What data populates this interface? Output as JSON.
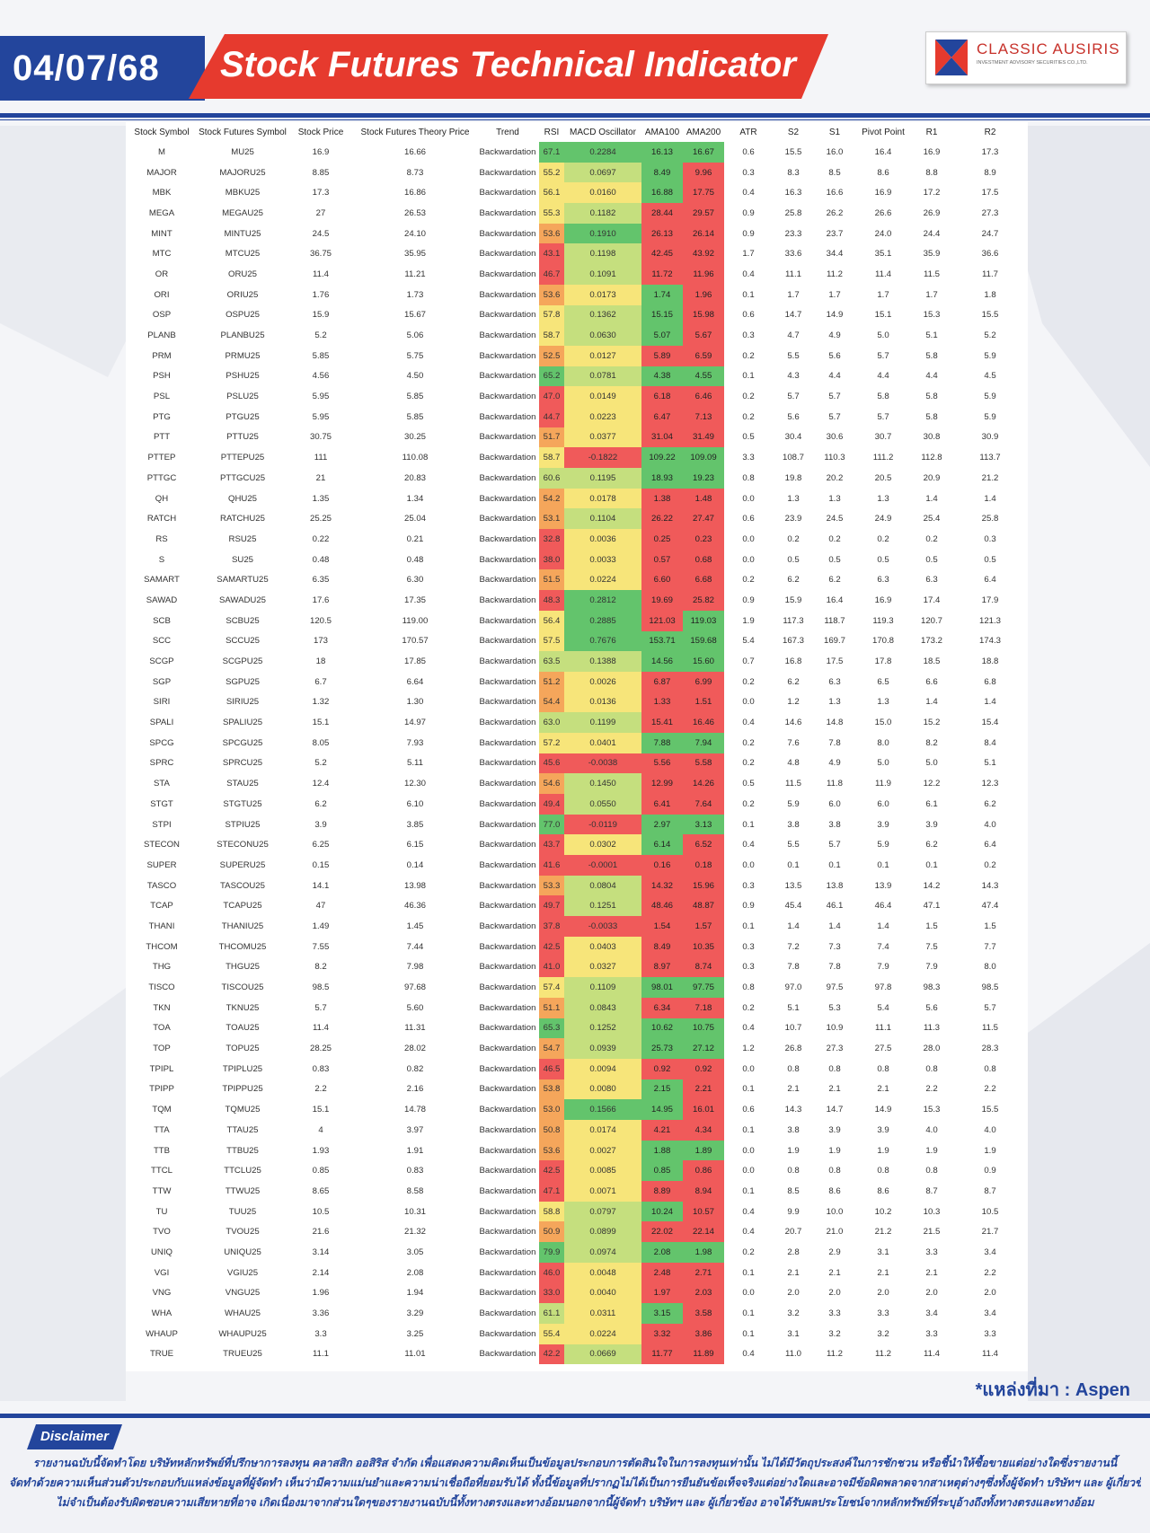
{
  "header": {
    "date": "04/07/68",
    "title": "Stock Futures Technical Indicator",
    "logo_name": "CLASSIC AUSIRIS",
    "logo_sub": "INVESTMENT ADVISORY SECURITIES CO.,LTD."
  },
  "colors": {
    "brand_blue": "#23459c",
    "brand_red": "#e63a2e",
    "cell_red": "#f05a5a",
    "cell_orange": "#f5a65b",
    "cell_yellow": "#f7e57a",
    "cell_lightgreen": "#c5df7e",
    "cell_green": "#63c46c"
  },
  "table": {
    "columns": [
      "Stock Symbol",
      "Stock Futures Symbol",
      "Stock Price",
      "Stock Futures Theory Price",
      "Trend",
      "RSI",
      "MACD Oscillator",
      "AMA100",
      "AMA200",
      "ATR",
      "S2",
      "S1",
      "Pivot Point",
      "R1",
      "R2"
    ],
    "rows": [
      [
        "M",
        "MU25",
        "16.9",
        "16.66",
        "Backwardation",
        "67.1",
        "0.2284",
        "16.13",
        "16.67",
        "0.6",
        "15.5",
        "16.0",
        "16.4",
        "16.9",
        "17.3"
      ],
      [
        "MAJOR",
        "MAJORU25",
        "8.85",
        "8.73",
        "Backwardation",
        "55.2",
        "0.0697",
        "8.49",
        "9.96",
        "0.3",
        "8.3",
        "8.5",
        "8.6",
        "8.8",
        "8.9"
      ],
      [
        "MBK",
        "MBKU25",
        "17.3",
        "16.86",
        "Backwardation",
        "56.1",
        "0.0160",
        "16.88",
        "17.75",
        "0.4",
        "16.3",
        "16.6",
        "16.9",
        "17.2",
        "17.5"
      ],
      [
        "MEGA",
        "MEGAU25",
        "27",
        "26.53",
        "Backwardation",
        "55.3",
        "0.1182",
        "28.44",
        "29.57",
        "0.9",
        "25.8",
        "26.2",
        "26.6",
        "26.9",
        "27.3"
      ],
      [
        "MINT",
        "MINTU25",
        "24.5",
        "24.10",
        "Backwardation",
        "53.6",
        "0.1910",
        "26.13",
        "26.14",
        "0.9",
        "23.3",
        "23.7",
        "24.0",
        "24.4",
        "24.7"
      ],
      [
        "MTC",
        "MTCU25",
        "36.75",
        "35.95",
        "Backwardation",
        "43.1",
        "0.1198",
        "42.45",
        "43.92",
        "1.7",
        "33.6",
        "34.4",
        "35.1",
        "35.9",
        "36.6"
      ],
      [
        "OR",
        "ORU25",
        "11.4",
        "11.21",
        "Backwardation",
        "46.7",
        "0.1091",
        "11.72",
        "11.96",
        "0.4",
        "11.1",
        "11.2",
        "11.4",
        "11.5",
        "11.7"
      ],
      [
        "ORI",
        "ORIU25",
        "1.76",
        "1.73",
        "Backwardation",
        "53.6",
        "0.0173",
        "1.74",
        "1.96",
        "0.1",
        "1.7",
        "1.7",
        "1.7",
        "1.7",
        "1.8"
      ],
      [
        "OSP",
        "OSPU25",
        "15.9",
        "15.67",
        "Backwardation",
        "57.8",
        "0.1362",
        "15.15",
        "15.98",
        "0.6",
        "14.7",
        "14.9",
        "15.1",
        "15.3",
        "15.5"
      ],
      [
        "PLANB",
        "PLANBU25",
        "5.2",
        "5.06",
        "Backwardation",
        "58.7",
        "0.0630",
        "5.07",
        "5.67",
        "0.3",
        "4.7",
        "4.9",
        "5.0",
        "5.1",
        "5.2"
      ],
      [
        "PRM",
        "PRMU25",
        "5.85",
        "5.75",
        "Backwardation",
        "52.5",
        "0.0127",
        "5.89",
        "6.59",
        "0.2",
        "5.5",
        "5.6",
        "5.7",
        "5.8",
        "5.9"
      ],
      [
        "PSH",
        "PSHU25",
        "4.56",
        "4.50",
        "Backwardation",
        "65.2",
        "0.0781",
        "4.38",
        "4.55",
        "0.1",
        "4.3",
        "4.4",
        "4.4",
        "4.4",
        "4.5"
      ],
      [
        "PSL",
        "PSLU25",
        "5.95",
        "5.85",
        "Backwardation",
        "47.0",
        "0.0149",
        "6.18",
        "6.46",
        "0.2",
        "5.7",
        "5.7",
        "5.8",
        "5.8",
        "5.9"
      ],
      [
        "PTG",
        "PTGU25",
        "5.95",
        "5.85",
        "Backwardation",
        "44.7",
        "0.0223",
        "6.47",
        "7.13",
        "0.2",
        "5.6",
        "5.7",
        "5.7",
        "5.8",
        "5.9"
      ],
      [
        "PTT",
        "PTTU25",
        "30.75",
        "30.25",
        "Backwardation",
        "51.7",
        "0.0377",
        "31.04",
        "31.49",
        "0.5",
        "30.4",
        "30.6",
        "30.7",
        "30.8",
        "30.9"
      ],
      [
        "PTTEP",
        "PTTEPU25",
        "111",
        "110.08",
        "Backwardation",
        "58.7",
        "-0.1822",
        "109.22",
        "109.09",
        "3.3",
        "108.7",
        "110.3",
        "111.2",
        "112.8",
        "113.7"
      ],
      [
        "PTTGC",
        "PTTGCU25",
        "21",
        "20.83",
        "Backwardation",
        "60.6",
        "0.1195",
        "18.93",
        "19.23",
        "0.8",
        "19.8",
        "20.2",
        "20.5",
        "20.9",
        "21.2"
      ],
      [
        "QH",
        "QHU25",
        "1.35",
        "1.34",
        "Backwardation",
        "54.2",
        "0.0178",
        "1.38",
        "1.48",
        "0.0",
        "1.3",
        "1.3",
        "1.3",
        "1.4",
        "1.4"
      ],
      [
        "RATCH",
        "RATCHU25",
        "25.25",
        "25.04",
        "Backwardation",
        "53.1",
        "0.1104",
        "26.22",
        "27.47",
        "0.6",
        "23.9",
        "24.5",
        "24.9",
        "25.4",
        "25.8"
      ],
      [
        "RS",
        "RSU25",
        "0.22",
        "0.21",
        "Backwardation",
        "32.8",
        "0.0036",
        "0.25",
        "0.23",
        "0.0",
        "0.2",
        "0.2",
        "0.2",
        "0.2",
        "0.3"
      ],
      [
        "S",
        "SU25",
        "0.48",
        "0.48",
        "Backwardation",
        "38.0",
        "0.0033",
        "0.57",
        "0.68",
        "0.0",
        "0.5",
        "0.5",
        "0.5",
        "0.5",
        "0.5"
      ],
      [
        "SAMART",
        "SAMARTU25",
        "6.35",
        "6.30",
        "Backwardation",
        "51.5",
        "0.0224",
        "6.60",
        "6.68",
        "0.2",
        "6.2",
        "6.2",
        "6.3",
        "6.3",
        "6.4"
      ],
      [
        "SAWAD",
        "SAWADU25",
        "17.6",
        "17.35",
        "Backwardation",
        "48.3",
        "0.2812",
        "19.69",
        "25.82",
        "0.9",
        "15.9",
        "16.4",
        "16.9",
        "17.4",
        "17.9"
      ],
      [
        "SCB",
        "SCBU25",
        "120.5",
        "119.00",
        "Backwardation",
        "56.4",
        "0.2885",
        "121.03",
        "119.03",
        "1.9",
        "117.3",
        "118.7",
        "119.3",
        "120.7",
        "121.3"
      ],
      [
        "SCC",
        "SCCU25",
        "173",
        "170.57",
        "Backwardation",
        "57.5",
        "0.7676",
        "153.71",
        "159.68",
        "5.4",
        "167.3",
        "169.7",
        "170.8",
        "173.2",
        "174.3"
      ],
      [
        "SCGP",
        "SCGPU25",
        "18",
        "17.85",
        "Backwardation",
        "63.5",
        "0.1388",
        "14.56",
        "15.60",
        "0.7",
        "16.8",
        "17.5",
        "17.8",
        "18.5",
        "18.8"
      ],
      [
        "SGP",
        "SGPU25",
        "6.7",
        "6.64",
        "Backwardation",
        "51.2",
        "0.0026",
        "6.87",
        "6.99",
        "0.2",
        "6.2",
        "6.3",
        "6.5",
        "6.6",
        "6.8"
      ],
      [
        "SIRI",
        "SIRIU25",
        "1.32",
        "1.30",
        "Backwardation",
        "54.4",
        "0.0136",
        "1.33",
        "1.51",
        "0.0",
        "1.2",
        "1.3",
        "1.3",
        "1.4",
        "1.4"
      ],
      [
        "SPALI",
        "SPALIU25",
        "15.1",
        "14.97",
        "Backwardation",
        "63.0",
        "0.1199",
        "15.41",
        "16.46",
        "0.4",
        "14.6",
        "14.8",
        "15.0",
        "15.2",
        "15.4"
      ],
      [
        "SPCG",
        "SPCGU25",
        "8.05",
        "7.93",
        "Backwardation",
        "57.2",
        "0.0401",
        "7.88",
        "7.94",
        "0.2",
        "7.6",
        "7.8",
        "8.0",
        "8.2",
        "8.4"
      ],
      [
        "SPRC",
        "SPRCU25",
        "5.2",
        "5.11",
        "Backwardation",
        "45.6",
        "-0.0038",
        "5.56",
        "5.58",
        "0.2",
        "4.8",
        "4.9",
        "5.0",
        "5.0",
        "5.1"
      ],
      [
        "STA",
        "STAU25",
        "12.4",
        "12.30",
        "Backwardation",
        "54.6",
        "0.1450",
        "12.99",
        "14.26",
        "0.5",
        "11.5",
        "11.8",
        "11.9",
        "12.2",
        "12.3"
      ],
      [
        "STGT",
        "STGTU25",
        "6.2",
        "6.10",
        "Backwardation",
        "49.4",
        "0.0550",
        "6.41",
        "7.64",
        "0.2",
        "5.9",
        "6.0",
        "6.0",
        "6.1",
        "6.2"
      ],
      [
        "STPI",
        "STPIU25",
        "3.9",
        "3.85",
        "Backwardation",
        "77.0",
        "-0.0119",
        "2.97",
        "3.13",
        "0.1",
        "3.8",
        "3.8",
        "3.9",
        "3.9",
        "4.0"
      ],
      [
        "STECON",
        "STECONU25",
        "6.25",
        "6.15",
        "Backwardation",
        "43.7",
        "0.0302",
        "6.14",
        "6.52",
        "0.4",
        "5.5",
        "5.7",
        "5.9",
        "6.2",
        "6.4"
      ],
      [
        "SUPER",
        "SUPERU25",
        "0.15",
        "0.14",
        "Backwardation",
        "41.6",
        "-0.0001",
        "0.16",
        "0.18",
        "0.0",
        "0.1",
        "0.1",
        "0.1",
        "0.1",
        "0.2"
      ],
      [
        "TASCO",
        "TASCOU25",
        "14.1",
        "13.98",
        "Backwardation",
        "53.3",
        "0.0804",
        "14.32",
        "15.96",
        "0.3",
        "13.5",
        "13.8",
        "13.9",
        "14.2",
        "14.3"
      ],
      [
        "TCAP",
        "TCAPU25",
        "47",
        "46.36",
        "Backwardation",
        "49.7",
        "0.1251",
        "48.46",
        "48.87",
        "0.9",
        "45.4",
        "46.1",
        "46.4",
        "47.1",
        "47.4"
      ],
      [
        "THANI",
        "THANIU25",
        "1.49",
        "1.45",
        "Backwardation",
        "37.8",
        "-0.0033",
        "1.54",
        "1.57",
        "0.1",
        "1.4",
        "1.4",
        "1.4",
        "1.5",
        "1.5"
      ],
      [
        "THCOM",
        "THCOMU25",
        "7.55",
        "7.44",
        "Backwardation",
        "42.5",
        "0.0403",
        "8.49",
        "10.35",
        "0.3",
        "7.2",
        "7.3",
        "7.4",
        "7.5",
        "7.7"
      ],
      [
        "THG",
        "THGU25",
        "8.2",
        "7.98",
        "Backwardation",
        "41.0",
        "0.0327",
        "8.97",
        "8.74",
        "0.3",
        "7.8",
        "7.8",
        "7.9",
        "7.9",
        "8.0"
      ],
      [
        "TISCO",
        "TISCOU25",
        "98.5",
        "97.68",
        "Backwardation",
        "57.4",
        "0.1109",
        "98.01",
        "97.75",
        "0.8",
        "97.0",
        "97.5",
        "97.8",
        "98.3",
        "98.5"
      ],
      [
        "TKN",
        "TKNU25",
        "5.7",
        "5.60",
        "Backwardation",
        "51.1",
        "0.0843",
        "6.34",
        "7.18",
        "0.2",
        "5.1",
        "5.3",
        "5.4",
        "5.6",
        "5.7"
      ],
      [
        "TOA",
        "TOAU25",
        "11.4",
        "11.31",
        "Backwardation",
        "65.3",
        "0.1252",
        "10.62",
        "10.75",
        "0.4",
        "10.7",
        "10.9",
        "11.1",
        "11.3",
        "11.5"
      ],
      [
        "TOP",
        "TOPU25",
        "28.25",
        "28.02",
        "Backwardation",
        "54.7",
        "0.0939",
        "25.73",
        "27.12",
        "1.2",
        "26.8",
        "27.3",
        "27.5",
        "28.0",
        "28.3"
      ],
      [
        "TPIPL",
        "TPIPLU25",
        "0.83",
        "0.82",
        "Backwardation",
        "46.5",
        "0.0094",
        "0.92",
        "0.92",
        "0.0",
        "0.8",
        "0.8",
        "0.8",
        "0.8",
        "0.8"
      ],
      [
        "TPIPP",
        "TPIPPU25",
        "2.2",
        "2.16",
        "Backwardation",
        "53.8",
        "0.0080",
        "2.15",
        "2.21",
        "0.1",
        "2.1",
        "2.1",
        "2.1",
        "2.2",
        "2.2"
      ],
      [
        "TQM",
        "TQMU25",
        "15.1",
        "14.78",
        "Backwardation",
        "53.0",
        "0.1566",
        "14.95",
        "16.01",
        "0.6",
        "14.3",
        "14.7",
        "14.9",
        "15.3",
        "15.5"
      ],
      [
        "TTA",
        "TTAU25",
        "4",
        "3.97",
        "Backwardation",
        "50.8",
        "0.0174",
        "4.21",
        "4.34",
        "0.1",
        "3.8",
        "3.9",
        "3.9",
        "4.0",
        "4.0"
      ],
      [
        "TTB",
        "TTBU25",
        "1.93",
        "1.91",
        "Backwardation",
        "53.6",
        "0.0027",
        "1.88",
        "1.89",
        "0.0",
        "1.9",
        "1.9",
        "1.9",
        "1.9",
        "1.9"
      ],
      [
        "TTCL",
        "TTCLU25",
        "0.85",
        "0.83",
        "Backwardation",
        "42.5",
        "0.0085",
        "0.85",
        "0.86",
        "0.0",
        "0.8",
        "0.8",
        "0.8",
        "0.8",
        "0.9"
      ],
      [
        "TTW",
        "TTWU25",
        "8.65",
        "8.58",
        "Backwardation",
        "47.1",
        "0.0071",
        "8.89",
        "8.94",
        "0.1",
        "8.5",
        "8.6",
        "8.6",
        "8.7",
        "8.7"
      ],
      [
        "TU",
        "TUU25",
        "10.5",
        "10.31",
        "Backwardation",
        "58.8",
        "0.0797",
        "10.24",
        "10.57",
        "0.4",
        "9.9",
        "10.0",
        "10.2",
        "10.3",
        "10.5"
      ],
      [
        "TVO",
        "TVOU25",
        "21.6",
        "21.32",
        "Backwardation",
        "50.9",
        "0.0899",
        "22.02",
        "22.14",
        "0.4",
        "20.7",
        "21.0",
        "21.2",
        "21.5",
        "21.7"
      ],
      [
        "UNIQ",
        "UNIQU25",
        "3.14",
        "3.05",
        "Backwardation",
        "79.9",
        "0.0974",
        "2.08",
        "1.98",
        "0.2",
        "2.8",
        "2.9",
        "3.1",
        "3.3",
        "3.4"
      ],
      [
        "VGI",
        "VGIU25",
        "2.14",
        "2.08",
        "Backwardation",
        "46.0",
        "0.0048",
        "2.48",
        "2.71",
        "0.1",
        "2.1",
        "2.1",
        "2.1",
        "2.1",
        "2.2"
      ],
      [
        "VNG",
        "VNGU25",
        "1.96",
        "1.94",
        "Backwardation",
        "33.0",
        "0.0040",
        "1.97",
        "2.03",
        "0.0",
        "2.0",
        "2.0",
        "2.0",
        "2.0",
        "2.0"
      ],
      [
        "WHA",
        "WHAU25",
        "3.36",
        "3.29",
        "Backwardation",
        "61.1",
        "0.0311",
        "3.15",
        "3.58",
        "0.1",
        "3.2",
        "3.3",
        "3.3",
        "3.4",
        "3.4"
      ],
      [
        "WHAUP",
        "WHAUPU25",
        "3.3",
        "3.25",
        "Backwardation",
        "55.4",
        "0.0224",
        "3.32",
        "3.86",
        "0.1",
        "3.1",
        "3.2",
        "3.2",
        "3.3",
        "3.3"
      ],
      [
        "TRUE",
        "TRUEU25",
        "11.1",
        "11.01",
        "Backwardation",
        "42.2",
        "0.0669",
        "11.77",
        "11.89",
        "0.4",
        "11.0",
        "11.2",
        "11.2",
        "11.4",
        "11.4"
      ]
    ]
  },
  "footer": {
    "source": "*แหล่งที่มา : Aspen",
    "disclaimer_label": "Disclaimer",
    "disclaimer_lines": [
      "รายงานฉบับนี้จัดทำโดย บริษัทหลักทรัพย์ที่ปรึกษาการลงทุน คลาสสิก ออสิริส จำกัด เพื่อแสดงความคิดเห็นเป็นข้อมูลประกอบการตัดสินใจในการลงทุนเท่านั้น ไม่ได้มีวัตถุประสงค์ในการชักชวน หรือชี้นำให้ซื้อขายแต่อย่างใดซึ่งรายงานนี้",
      "จัดทำด้วยความเห็นส่วนตัวประกอบกับแหล่งข้อมูลที่ผู้จัดทำ เห็นว่ามีความแม่นยำและความน่าเชื่อถือที่ยอมรับได้ ทั้งนี้ข้อมูลที่ปรากฏไม่ได้เป็นการยืนยันข้อเท็จจริงแต่อย่างใดและอาจมีข้อผิดพลาดจากสาเหตุต่างๆซึ่งทั้งผู้จัดทำ บริษัทฯ และ ผู้เกี่ยวข้อง",
      "ไม่จำเป็นต้องรับผิดชอบความเสียหายที่อาจ เกิดเนื่องมาจากส่วนใดๆของรายงานฉบับนี้ทั้งทางตรงและทางอ้อมนอกจากนี้ผู้จัดทำ บริษัทฯ และ ผู้เกี่ยวข้อง อาจได้รับผลประโยชน์จากหลักทรัพย์ที่ระบุอ้างถึงทั้งทางตรงและทางอ้อม"
    ]
  }
}
